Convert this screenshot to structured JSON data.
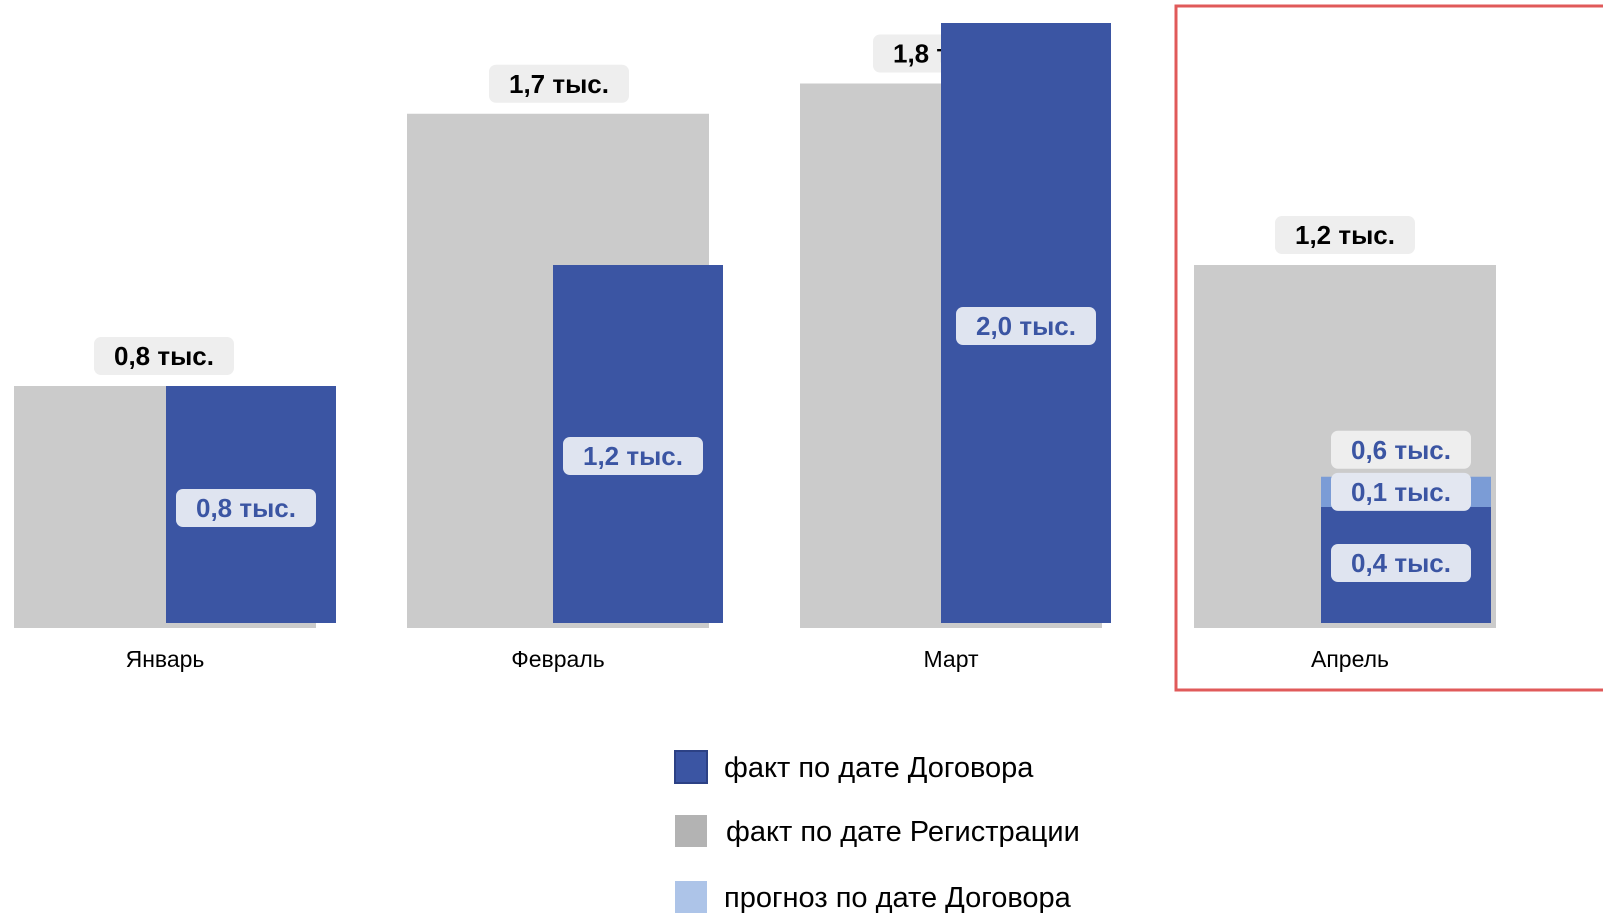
{
  "chart_data": {
    "type": "bar",
    "title": "",
    "xlabel": "",
    "ylabel": "",
    "ylim": [
      0,
      2.0
    ],
    "grid": false,
    "legend_position": "bottom-center",
    "categories": [
      "Январь",
      "Февраль",
      "Март",
      "Апрель"
    ],
    "series": [
      {
        "name": "факт по дате Регистрации",
        "color": "#cbcbcb",
        "values": [
          0.8,
          1.7,
          1.8,
          1.2
        ],
        "labels": [
          "0,8 тыс.",
          "1,7 тыс.",
          "1,8 тыс.",
          "1,2 тыс."
        ]
      },
      {
        "name": "факт по дате Договора",
        "color": "#3b55a3",
        "values": [
          0.8,
          1.2,
          2.0,
          0.4
        ],
        "labels": [
          "0,8 тыс.",
          "1,2 тыс.",
          "2,0 тыс.",
          "0,4 тыс."
        ]
      },
      {
        "name": "прогноз по дате Договора",
        "color": "#7b9cd6",
        "values": [
          null,
          null,
          null,
          0.1
        ],
        "labels": [
          "",
          "",
          "",
          "0,1 тыс."
        ]
      }
    ],
    "totals": {
      "Апрель": "0,6 тыс."
    },
    "highlighted_category": "Апрель",
    "highlight_color": "#e05a5a",
    "legend": [
      {
        "label": "факт по дате Договора",
        "color": "#3b55a3"
      },
      {
        "label": "факт по дате Регистрации",
        "color": "#b3b3b3"
      },
      {
        "label": "прогноз по дате Договора",
        "color": "#adc4e8"
      }
    ]
  }
}
